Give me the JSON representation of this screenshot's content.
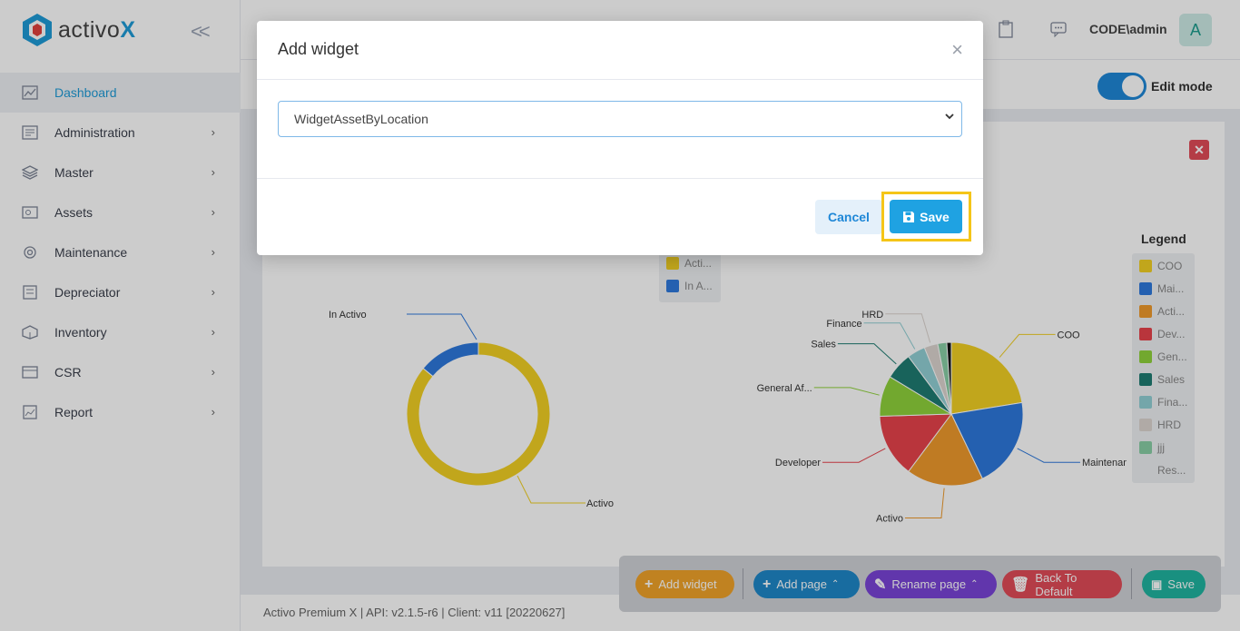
{
  "app": {
    "logo_prefix": "activo",
    "logo_suffix": "X"
  },
  "sidebar": {
    "items": [
      {
        "label": "Dashboard",
        "icon": "dashboard-icon",
        "active": true
      },
      {
        "label": "Administration",
        "icon": "administration-icon"
      },
      {
        "label": "Master",
        "icon": "layers-icon"
      },
      {
        "label": "Assets",
        "icon": "assets-icon"
      },
      {
        "label": "Maintenance",
        "icon": "gear-icon"
      },
      {
        "label": "Depreciator",
        "icon": "depreciator-icon"
      },
      {
        "label": "Inventory",
        "icon": "inventory-icon"
      },
      {
        "label": "CSR",
        "icon": "csr-icon"
      },
      {
        "label": "Report",
        "icon": "report-icon"
      }
    ]
  },
  "header": {
    "user": "CODE\\admin",
    "avatar_letter": "A",
    "edit_mode_label": "Edit mode",
    "edit_mode_on": true
  },
  "widgets": {
    "left": {
      "legend": [
        "Acti...",
        "In A..."
      ],
      "labels": [
        "In Activo",
        "Activo"
      ],
      "slices": [
        {
          "name": "Activo",
          "value": 86,
          "color": "#f2d024"
        },
        {
          "name": "In Activo",
          "value": 14,
          "color": "#2d79dd"
        }
      ]
    },
    "right": {
      "legend_title": "Legend",
      "legend": [
        "COO",
        "Mai...",
        "Acti...",
        "Dev...",
        "Gen...",
        "Sales",
        "Fina...",
        "HRD",
        "jjj",
        "Res..."
      ],
      "slices": [
        {
          "name": "COO",
          "value": 22,
          "color": "#f2d024"
        },
        {
          "name": "Maintenanc...",
          "value": 20,
          "color": "#2d79dd"
        },
        {
          "name": "Activo",
          "value": 17,
          "color": "#ef9a2c"
        },
        {
          "name": "Developer",
          "value": 14,
          "color": "#e8434c"
        },
        {
          "name": "General Af...",
          "value": 9,
          "color": "#8fd33b"
        },
        {
          "name": "Sales",
          "value": 6,
          "color": "#1f7c72"
        },
        {
          "name": "Finance",
          "value": 4,
          "color": "#92d0d5"
        },
        {
          "name": "HRD",
          "value": 3,
          "color": "#ddd5d0"
        },
        {
          "name": "jjj",
          "value": 2,
          "color": "#89cfa6"
        },
        {
          "name": "Res...",
          "value": 1,
          "color": "#111111"
        }
      ]
    }
  },
  "toolbar": {
    "add_widget": "Add widget",
    "add_page": "Add page",
    "rename_page": "Rename page",
    "back_to_default": "Back To Default",
    "save": "Save"
  },
  "footer": {
    "text": "Activo Premium X | API: v2.1.5-r6 | Client: v11 [20220627]"
  },
  "modal": {
    "title": "Add widget",
    "select_value": "WidgetAssetByLocation",
    "cancel_label": "Cancel",
    "save_label": "Save"
  },
  "colors": {
    "primary": "#1fa2e2",
    "add_widget": "#f0a32a",
    "add_page": "#1e87c8",
    "rename_page": "#7a44d8",
    "back_default": "#e24b58",
    "save": "#20b4a0",
    "highlight": "#f5c518"
  }
}
